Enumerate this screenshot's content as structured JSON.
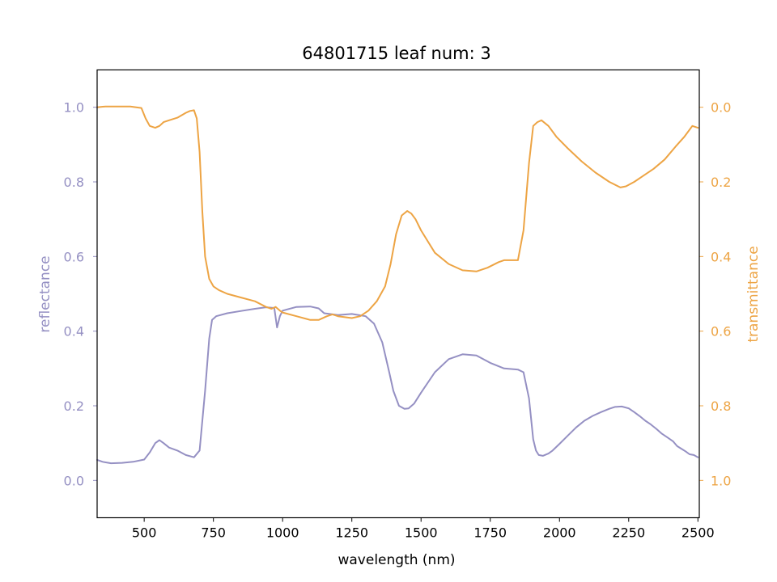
{
  "chart_data": {
    "type": "line",
    "title": "64801715 leaf num: 3",
    "xlabel": "wavelength (nm)",
    "ylabel": "reflectance",
    "y2label": "transmittance",
    "xlim": [
      330,
      2505
    ],
    "ylim": [
      -0.1,
      1.1
    ],
    "y2lim": [
      1.1,
      -0.1
    ],
    "y2_inverted": true,
    "x_ticks": [
      "500",
      "750",
      "1000",
      "1250",
      "1500",
      "1750",
      "2000",
      "2250",
      "2500"
    ],
    "y_ticks": [
      "0.0",
      "0.2",
      "0.4",
      "0.6",
      "0.8",
      "1.0"
    ],
    "y2_ticks": [
      "0.0",
      "0.2",
      "0.4",
      "0.6",
      "0.8",
      "1.0"
    ],
    "grid": false,
    "colors": {
      "reflectance": "#9590c3",
      "transmittance": "#eda444",
      "axis": "#000000"
    },
    "series": [
      {
        "name": "reflectance",
        "axis": "left",
        "color": "#9590c3",
        "x": [
          330,
          350,
          380,
          420,
          460,
          500,
          520,
          540,
          555,
          570,
          590,
          620,
          650,
          680,
          700,
          720,
          735,
          745,
          760,
          800,
          850,
          900,
          940,
          970,
          980,
          990,
          1000,
          1050,
          1100,
          1130,
          1150,
          1200,
          1250,
          1300,
          1330,
          1360,
          1385,
          1400,
          1420,
          1440,
          1455,
          1475,
          1500,
          1550,
          1600,
          1650,
          1700,
          1750,
          1800,
          1850,
          1870,
          1890,
          1905,
          1915,
          1925,
          1940,
          1960,
          1975,
          2000,
          2030,
          2060,
          2090,
          2120,
          2150,
          2180,
          2200,
          2225,
          2250,
          2270,
          2290,
          2310,
          2330,
          2350,
          2370,
          2390,
          2410,
          2425,
          2440,
          2455,
          2470,
          2485,
          2500
        ],
        "y": [
          0.055,
          0.05,
          0.046,
          0.047,
          0.05,
          0.056,
          0.075,
          0.1,
          0.108,
          0.1,
          0.088,
          0.08,
          0.068,
          0.062,
          0.08,
          0.24,
          0.38,
          0.43,
          0.44,
          0.448,
          0.454,
          0.46,
          0.464,
          0.462,
          0.41,
          0.44,
          0.455,
          0.465,
          0.466,
          0.461,
          0.448,
          0.443,
          0.446,
          0.44,
          0.42,
          0.37,
          0.29,
          0.24,
          0.2,
          0.192,
          0.193,
          0.206,
          0.235,
          0.29,
          0.325,
          0.338,
          0.335,
          0.315,
          0.3,
          0.297,
          0.29,
          0.22,
          0.11,
          0.08,
          0.068,
          0.066,
          0.072,
          0.08,
          0.098,
          0.12,
          0.142,
          0.16,
          0.173,
          0.183,
          0.192,
          0.197,
          0.198,
          0.193,
          0.183,
          0.172,
          0.16,
          0.15,
          0.138,
          0.125,
          0.115,
          0.105,
          0.092,
          0.085,
          0.078,
          0.07,
          0.068,
          0.062
        ]
      },
      {
        "name": "transmittance",
        "axis": "right",
        "color": "#eda444",
        "x": [
          330,
          360,
          400,
          450,
          490,
          505,
          520,
          540,
          555,
          570,
          590,
          620,
          650,
          665,
          680,
          690,
          700,
          710,
          720,
          735,
          750,
          770,
          800,
          850,
          900,
          940,
          960,
          975,
          990,
          1000,
          1050,
          1100,
          1130,
          1160,
          1180,
          1200,
          1250,
          1280,
          1310,
          1340,
          1370,
          1390,
          1410,
          1430,
          1450,
          1465,
          1480,
          1500,
          1550,
          1600,
          1650,
          1700,
          1740,
          1780,
          1800,
          1830,
          1850,
          1870,
          1890,
          1905,
          1920,
          1935,
          1960,
          1990,
          2030,
          2080,
          2130,
          2180,
          2220,
          2240,
          2270,
          2300,
          2340,
          2380,
          2420,
          2450,
          2480,
          2500
        ],
        "y": [
          0.0,
          -0.002,
          -0.002,
          -0.002,
          0.002,
          0.03,
          0.05,
          0.055,
          0.05,
          0.04,
          0.035,
          0.028,
          0.015,
          0.01,
          0.008,
          0.03,
          0.12,
          0.28,
          0.4,
          0.46,
          0.48,
          0.49,
          0.5,
          0.51,
          0.52,
          0.535,
          0.54,
          0.535,
          0.545,
          0.55,
          0.56,
          0.57,
          0.57,
          0.56,
          0.555,
          0.56,
          0.565,
          0.56,
          0.545,
          0.52,
          0.48,
          0.42,
          0.34,
          0.29,
          0.278,
          0.285,
          0.3,
          0.33,
          0.39,
          0.42,
          0.437,
          0.44,
          0.43,
          0.415,
          0.41,
          0.41,
          0.41,
          0.33,
          0.15,
          0.05,
          0.04,
          0.035,
          0.05,
          0.08,
          0.11,
          0.145,
          0.175,
          0.2,
          0.215,
          0.212,
          0.2,
          0.185,
          0.165,
          0.14,
          0.105,
          0.08,
          0.05,
          0.055
        ]
      }
    ]
  }
}
